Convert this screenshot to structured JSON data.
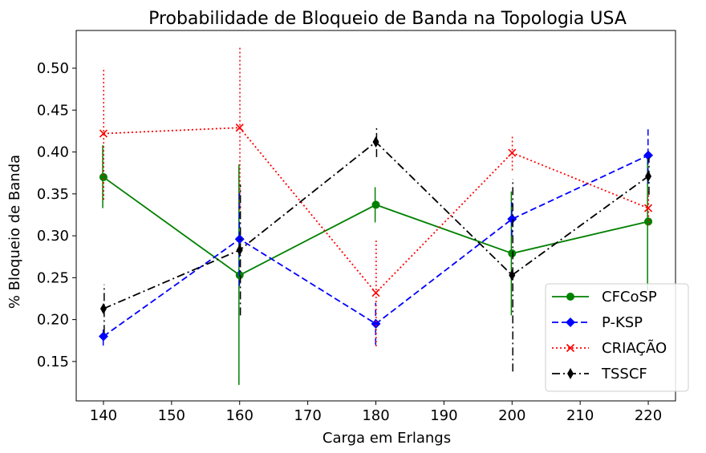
{
  "chart_data": {
    "type": "line",
    "title": "Probabilidade de Bloqueio de Banda na Topologia USA",
    "xlabel": "Carga em Erlangs",
    "ylabel": "% Bloqueio de Banda",
    "xlim": [
      136,
      224
    ],
    "ylim": [
      0.103,
      0.545
    ],
    "xticks": [
      140,
      150,
      160,
      170,
      180,
      190,
      200,
      210,
      220
    ],
    "yticks": [
      0.15,
      0.2,
      0.25,
      0.3,
      0.35,
      0.4,
      0.45,
      0.5
    ],
    "legend_position": "lower-right",
    "grid": false,
    "x": [
      140,
      160,
      180,
      200,
      220
    ],
    "series": [
      {
        "name": "CFCoSP",
        "color": "#008000",
        "dash": "solid",
        "marker": "circle",
        "values": [
          0.37,
          0.253,
          0.337,
          0.279,
          0.317
        ],
        "err_low": [
          0.333,
          0.122,
          0.316,
          0.205,
          0.235
        ],
        "err_high": [
          0.408,
          0.385,
          0.358,
          0.353,
          0.398
        ]
      },
      {
        "name": "P-KSP",
        "color": "#0000ff",
        "dash": "dashed",
        "marker": "diamond",
        "values": [
          0.18,
          0.296,
          0.195,
          0.32,
          0.396
        ],
        "err_low": [
          0.169,
          0.24,
          0.17,
          0.3,
          0.362
        ],
        "err_high": [
          0.191,
          0.352,
          0.22,
          0.34,
          0.43
        ]
      },
      {
        "name": "CRIAÇÃO",
        "color": "#ff0000",
        "dash": "dotted",
        "marker": "x",
        "values": [
          0.422,
          0.429,
          0.232,
          0.399,
          0.333
        ],
        "err_low": [
          0.343,
          0.331,
          0.168,
          0.378,
          0.313
        ],
        "err_high": [
          0.501,
          0.527,
          0.296,
          0.42,
          0.353
        ]
      },
      {
        "name": "TSSCF",
        "color": "#000000",
        "dash": "dashdot",
        "marker": "thin-diamond",
        "values": [
          0.213,
          0.283,
          0.412,
          0.253,
          0.371
        ],
        "err_low": [
          0.184,
          0.205,
          0.394,
          0.138,
          0.349
        ],
        "err_high": [
          0.242,
          0.361,
          0.43,
          0.368,
          0.393
        ]
      }
    ]
  }
}
